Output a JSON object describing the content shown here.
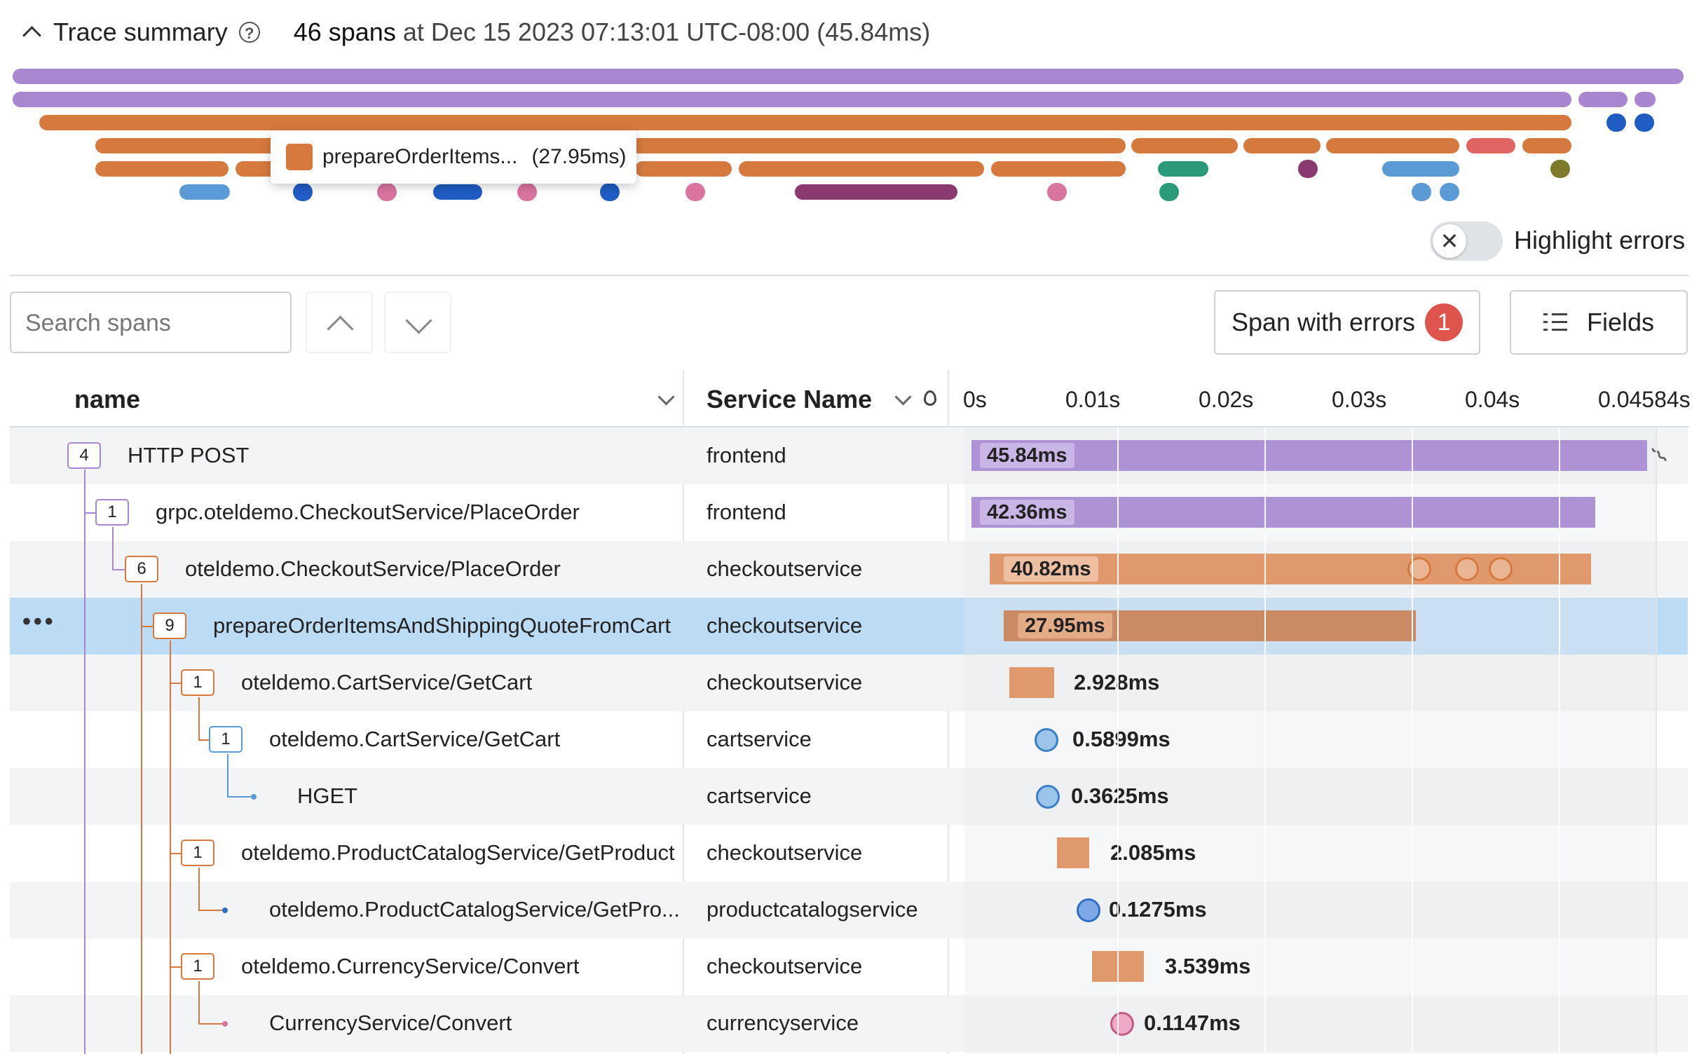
{
  "summary": {
    "title": "Trace summary",
    "span_count": "46 spans",
    "at_text": "at Dec 15 2023 07:13:01 UTC-08:00 (45.84ms)",
    "tooltip_name": "prepareOrderItems...",
    "tooltip_duration": "(27.95ms)",
    "highlight_label": "Highlight errors",
    "highlight_on": false
  },
  "toolbar": {
    "search_placeholder": "Search spans",
    "errors_label": "Span with errors",
    "errors_count": "1",
    "fields_label": "Fields"
  },
  "columns": {
    "name": "name",
    "service": "Service Name",
    "ticks": [
      "0s",
      "0.01s",
      "0.02s",
      "0.03s",
      "0.04s",
      "0.04584s"
    ]
  },
  "colors": {
    "frontend": "#a98bd1",
    "checkoutservice": "#d5793f",
    "cartservice": "#5b9bd5",
    "productcatalogservice": "#2f6ec4",
    "currencyservice": "#d9749f",
    "error": "#e0544e",
    "selected_row": "#bcdcf6"
  },
  "rows": [
    {
      "count": "4",
      "name": "HTTP POST",
      "service": "frontend",
      "duration": "45.84ms"
    },
    {
      "count": "1",
      "name": "grpc.oteldemo.CheckoutService/PlaceOrder",
      "service": "frontend",
      "duration": "42.36ms"
    },
    {
      "count": "6",
      "name": "oteldemo.CheckoutService/PlaceOrder",
      "service": "checkoutservice",
      "duration": "40.82ms"
    },
    {
      "count": "9",
      "name": "prepareOrderItemsAndShippingQuoteFromCart",
      "service": "checkoutservice",
      "duration": "27.95ms"
    },
    {
      "count": "1",
      "name": "oteldemo.CartService/GetCart",
      "service": "checkoutservice",
      "duration": "2.928ms"
    },
    {
      "count": "1",
      "name": "oteldemo.CartService/GetCart",
      "service": "cartservice",
      "duration": "0.5899ms"
    },
    {
      "count": "",
      "name": "HGET",
      "service": "cartservice",
      "duration": "0.3625ms"
    },
    {
      "count": "1",
      "name": "oteldemo.ProductCatalogService/GetProduct",
      "service": "checkoutservice",
      "duration": "2.085ms"
    },
    {
      "count": "",
      "name": "oteldemo.ProductCatalogService/GetPro...",
      "service": "productcatalogservice",
      "duration": "0.1275ms"
    },
    {
      "count": "1",
      "name": "oteldemo.CurrencyService/Convert",
      "service": "checkoutservice",
      "duration": "3.539ms"
    },
    {
      "count": "",
      "name": "CurrencyService/Convert",
      "service": "currencyservice",
      "duration": "0.1147ms"
    }
  ]
}
